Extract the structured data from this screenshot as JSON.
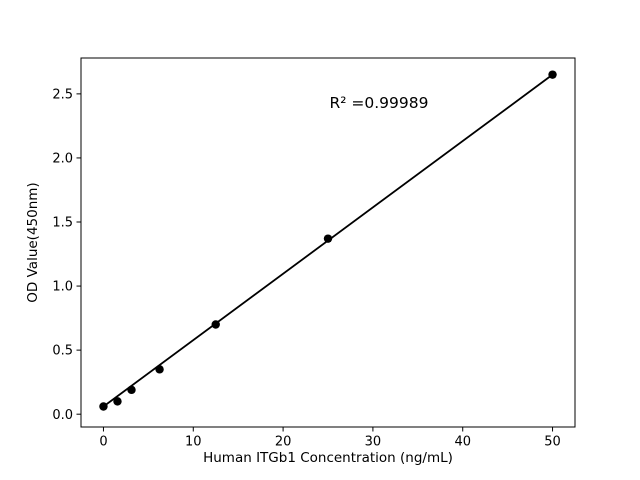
{
  "chart_data": {
    "type": "scatter",
    "title": "",
    "xlabel": "Human ITGb1 Concentration (ng/mL)",
    "ylabel": "OD Value(450nm)",
    "annotation": {
      "text": "R² =0.99989"
    },
    "x": [
      0,
      1.5625,
      3.125,
      6.25,
      12.5,
      25,
      50
    ],
    "y": [
      0.06,
      0.1,
      0.19,
      0.35,
      0.7,
      1.37,
      2.65
    ],
    "trendline": {
      "x1": 0,
      "y1": 0.06,
      "x2": 50,
      "y2": 2.65
    },
    "xlim": [
      -2.5,
      52.5
    ],
    "ylim": [
      -0.1,
      2.78
    ],
    "xticks": [
      {
        "value": 0,
        "label": "0"
      },
      {
        "value": 10,
        "label": "10"
      },
      {
        "value": 20,
        "label": "20"
      },
      {
        "value": 30,
        "label": "30"
      },
      {
        "value": 40,
        "label": "40"
      },
      {
        "value": 50,
        "label": "50"
      }
    ],
    "yticks": [
      {
        "value": 0.0,
        "label": "0.0"
      },
      {
        "value": 0.5,
        "label": "0.5"
      },
      {
        "value": 1.0,
        "label": "1.0"
      },
      {
        "value": 1.5,
        "label": "1.5"
      },
      {
        "value": 2.0,
        "label": "2.0"
      },
      {
        "value": 2.5,
        "label": "2.5"
      }
    ],
    "grid": false,
    "legend": false,
    "marker_shape": "circle",
    "colors": {
      "marker": "#000000",
      "line": "#000000",
      "axis": "#000000",
      "text": "#000000",
      "background": "#ffffff"
    }
  }
}
